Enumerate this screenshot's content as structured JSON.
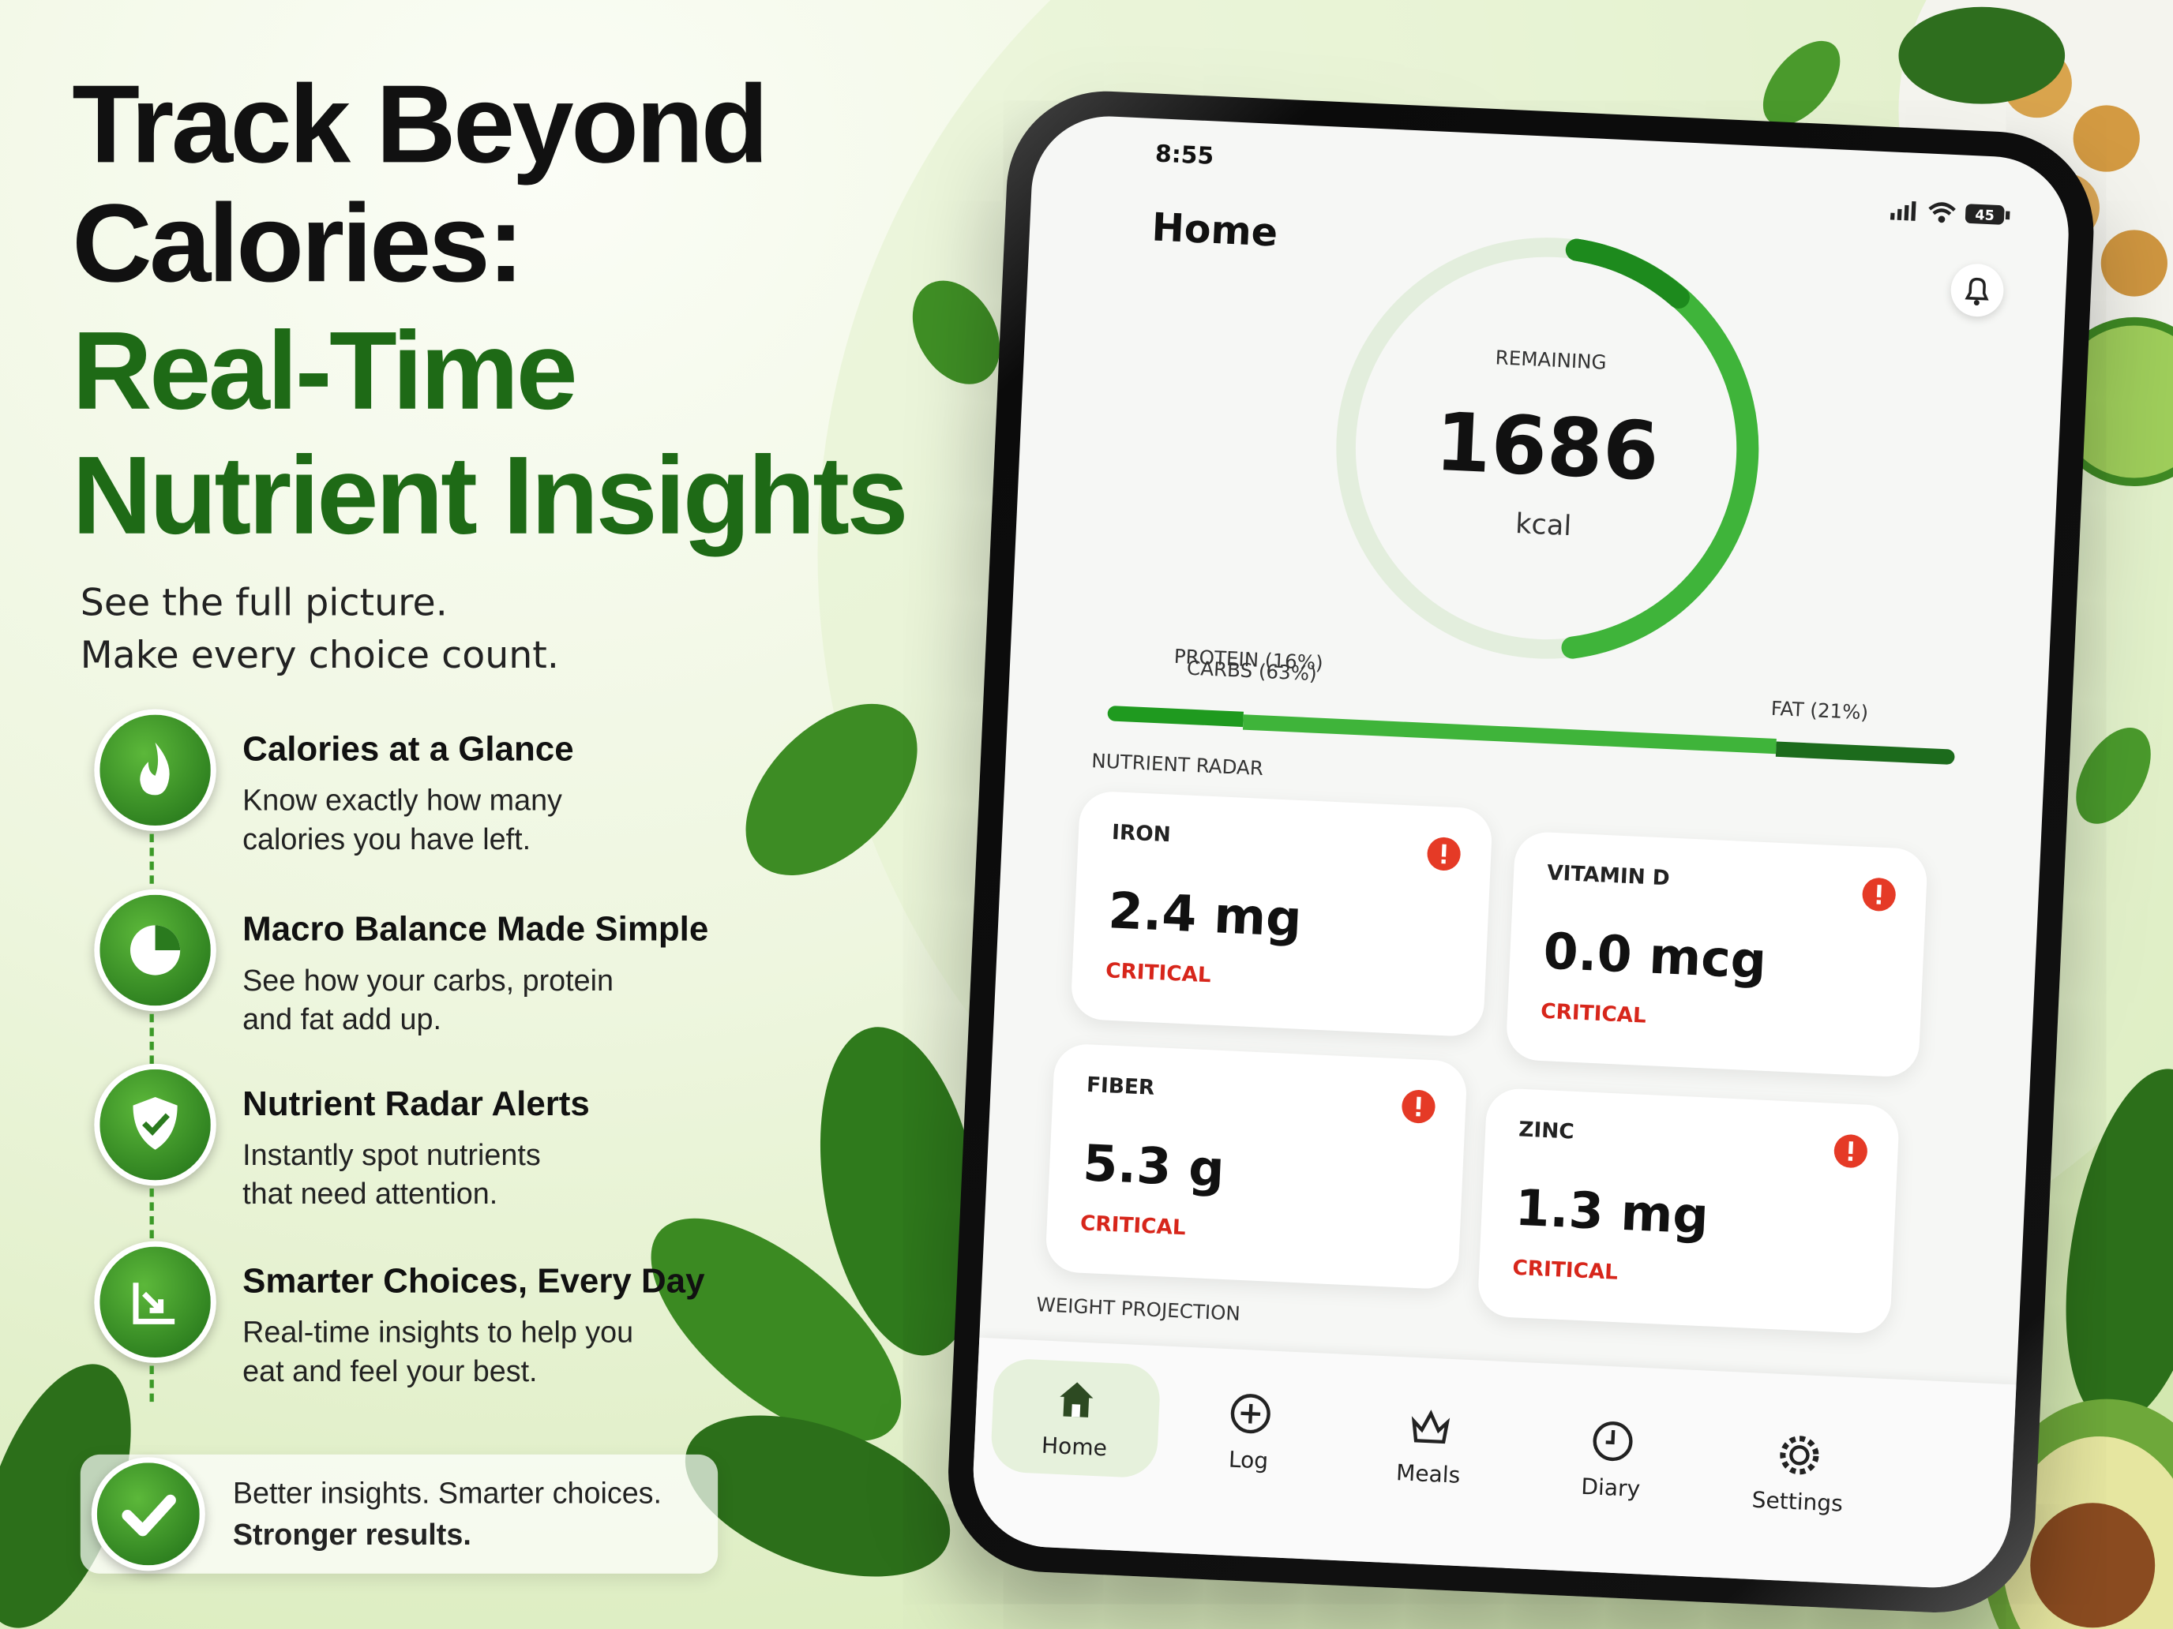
{
  "headline": {
    "lines": [
      "Track Beyond",
      "Calories:"
    ],
    "accent_lines": [
      "Real-Time",
      "Nutrient Insights"
    ]
  },
  "subtitle": [
    "See the full picture.",
    "Make every choice count."
  ],
  "features": [
    {
      "title": "Calories at a Glance",
      "description": [
        "Know exactly how many",
        "calories you have left."
      ]
    },
    {
      "title": "Macro Balance Made Simple",
      "description": [
        "See how your carbs, protein",
        "and fat add up."
      ]
    },
    {
      "title": "Nutrient Radar Alerts",
      "description": [
        "Instantly spot nutrients",
        "that need attention."
      ]
    },
    {
      "title": "Smarter Choices, Every Day",
      "description": [
        "Real-time insights to help you",
        "eat and feel your best."
      ]
    }
  ],
  "footer_note": [
    "Better insights. Smarter choices.",
    "Stronger results."
  ],
  "app": {
    "status_time": "8:55",
    "battery": "45",
    "screen_title": "Home",
    "remaining": {
      "label": "REMAINING",
      "value": 1686,
      "unit": "kcal"
    },
    "macros": [
      {
        "label": "PROTEIN (16%)",
        "value": 16,
        "color": "#1f9a1f"
      },
      {
        "label": "CARBS (63%)",
        "value": 63,
        "color": "#3fb43a"
      },
      {
        "label": "FAT (21%)",
        "value": 21,
        "color": "#1c6b1c"
      }
    ],
    "nutrient_radar": {
      "title": "NUTRIENT RADAR",
      "items": [
        {
          "name": "IRON",
          "value": "2.4 mg",
          "status": "CRITICAL"
        },
        {
          "name": "VITAMIN D",
          "value": "0.0 mcg",
          "status": "CRITICAL"
        },
        {
          "name": "FIBER",
          "value": "5.3 g",
          "status": "CRITICAL"
        },
        {
          "name": "ZINC",
          "value": "1.3 mg",
          "status": "CRITICAL"
        }
      ]
    },
    "next_section": "WEIGHT PROJECTION",
    "nav": [
      {
        "label": "Home",
        "active": true
      },
      {
        "label": "Log",
        "active": false
      },
      {
        "label": "Meals",
        "active": false
      },
      {
        "label": "Diary",
        "active": false
      },
      {
        "label": "Settings",
        "active": false
      }
    ]
  }
}
